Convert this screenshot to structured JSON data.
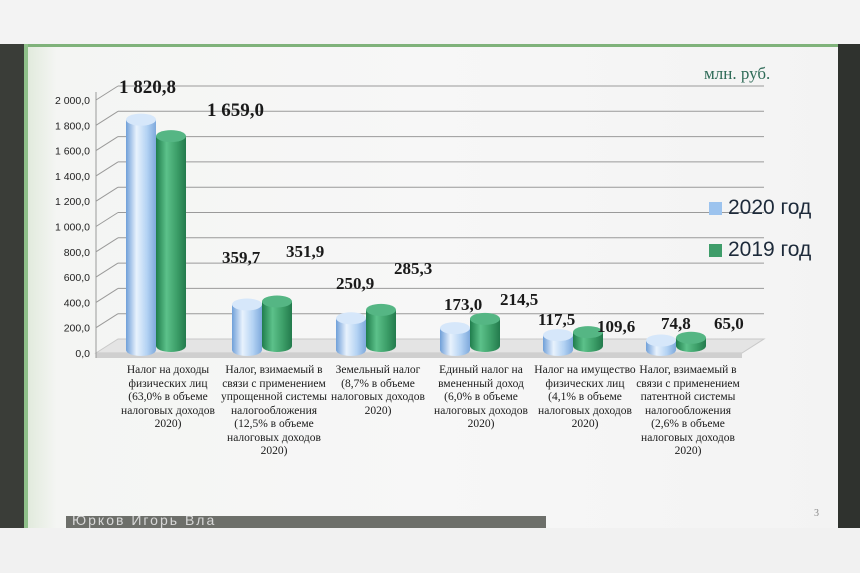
{
  "unit_label": "млн. руб.",
  "page_number": "3",
  "caption_text": "Юрков Игорь Вла",
  "colors": {
    "series_2020": "#9cc3ee",
    "series_2019": "#3f9d6a"
  },
  "chart_data": {
    "type": "bar",
    "ylim": [
      0,
      2000
    ],
    "yticks": [
      "0,0",
      "200,0",
      "400,0",
      "600,0",
      "800,0",
      "1 000,0",
      "1 200,0",
      "1 400,0",
      "1 600,0",
      "1 800,0",
      "2 000,0"
    ],
    "legend_position": "right",
    "grid": true,
    "categories": [
      "Налог на доходы физических лиц (63,0% в объеме налоговых доходов 2020)",
      "Налог, взимаемый в связи с применением упрощенной системы налогообложения (12,5% в объеме налоговых доходов 2020)",
      "Земельный налог (8,7% в объеме налоговых доходов 2020)",
      "Единый налог на вмененный доход (6,0% в объеме налоговых доходов 2020)",
      "Налог на имущество физических лиц (4,1% в объеме налоговых доходов 2020)",
      "Налог, взимаемый в связи с применением патентной системы налогообложения (2,6% в объеме налоговых доходов 2020)"
    ],
    "series": [
      {
        "name": "2020 год",
        "values": [
          1820.8,
          359.7,
          250.9,
          173.0,
          117.5,
          74.8
        ],
        "labels": [
          "1 820,8",
          "359,7",
          "250,9",
          "173,0",
          "117,5",
          "74,8"
        ]
      },
      {
        "name": "2019 год",
        "values": [
          1659.0,
          351.9,
          285.3,
          214.5,
          109.6,
          65.0
        ],
        "labels": [
          "1 659,0",
          "351,9",
          "285,3",
          "214,5",
          "109,6",
          "65,0"
        ]
      }
    ]
  }
}
